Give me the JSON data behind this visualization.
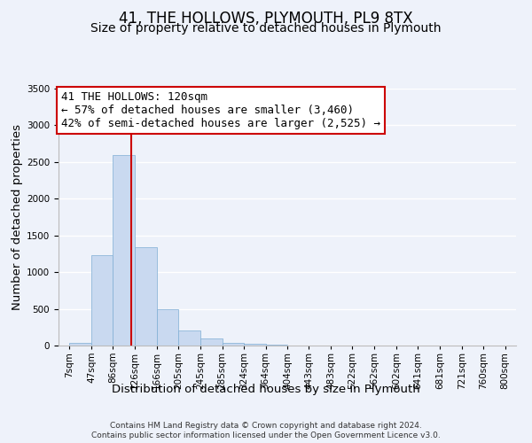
{
  "title": "41, THE HOLLOWS, PLYMOUTH, PL9 8TX",
  "subtitle": "Size of property relative to detached houses in Plymouth",
  "xlabel": "Distribution of detached houses by size in Plymouth",
  "ylabel": "Number of detached properties",
  "bar_labels": [
    "7sqm",
    "47sqm",
    "86sqm",
    "126sqm",
    "166sqm",
    "205sqm",
    "245sqm",
    "285sqm",
    "324sqm",
    "364sqm",
    "404sqm",
    "443sqm",
    "483sqm",
    "522sqm",
    "562sqm",
    "602sqm",
    "641sqm",
    "681sqm",
    "721sqm",
    "760sqm",
    "800sqm"
  ],
  "bar_values": [
    40,
    1230,
    2590,
    1340,
    500,
    200,
    100,
    40,
    20,
    10,
    5,
    3,
    2,
    1,
    1,
    1,
    1,
    1,
    1,
    1,
    0
  ],
  "bar_color": "#c9d9f0",
  "bar_edgecolor": "#7eadd4",
  "vline_x": 120,
  "vline_color": "#cc0000",
  "ylim": [
    0,
    3500
  ],
  "annotation_title": "41 THE HOLLOWS: 120sqm",
  "annotation_line1": "← 57% of detached houses are smaller (3,460)",
  "annotation_line2": "42% of semi-detached houses are larger (2,525) →",
  "annotation_box_color": "#ffffff",
  "annotation_box_edgecolor": "#cc0000",
  "footer1": "Contains HM Land Registry data © Crown copyright and database right 2024.",
  "footer2": "Contains public sector information licensed under the Open Government Licence v3.0.",
  "bin_edges": [
    7,
    47,
    86,
    126,
    166,
    205,
    245,
    285,
    324,
    364,
    404,
    443,
    483,
    522,
    562,
    602,
    641,
    681,
    721,
    760,
    800
  ],
  "background_color": "#eef2fa",
  "grid_color": "#ffffff",
  "title_fontsize": 12,
  "subtitle_fontsize": 10,
  "axis_label_fontsize": 9.5,
  "tick_fontsize": 7.5,
  "annotation_fontsize": 9,
  "footer_fontsize": 6.5
}
